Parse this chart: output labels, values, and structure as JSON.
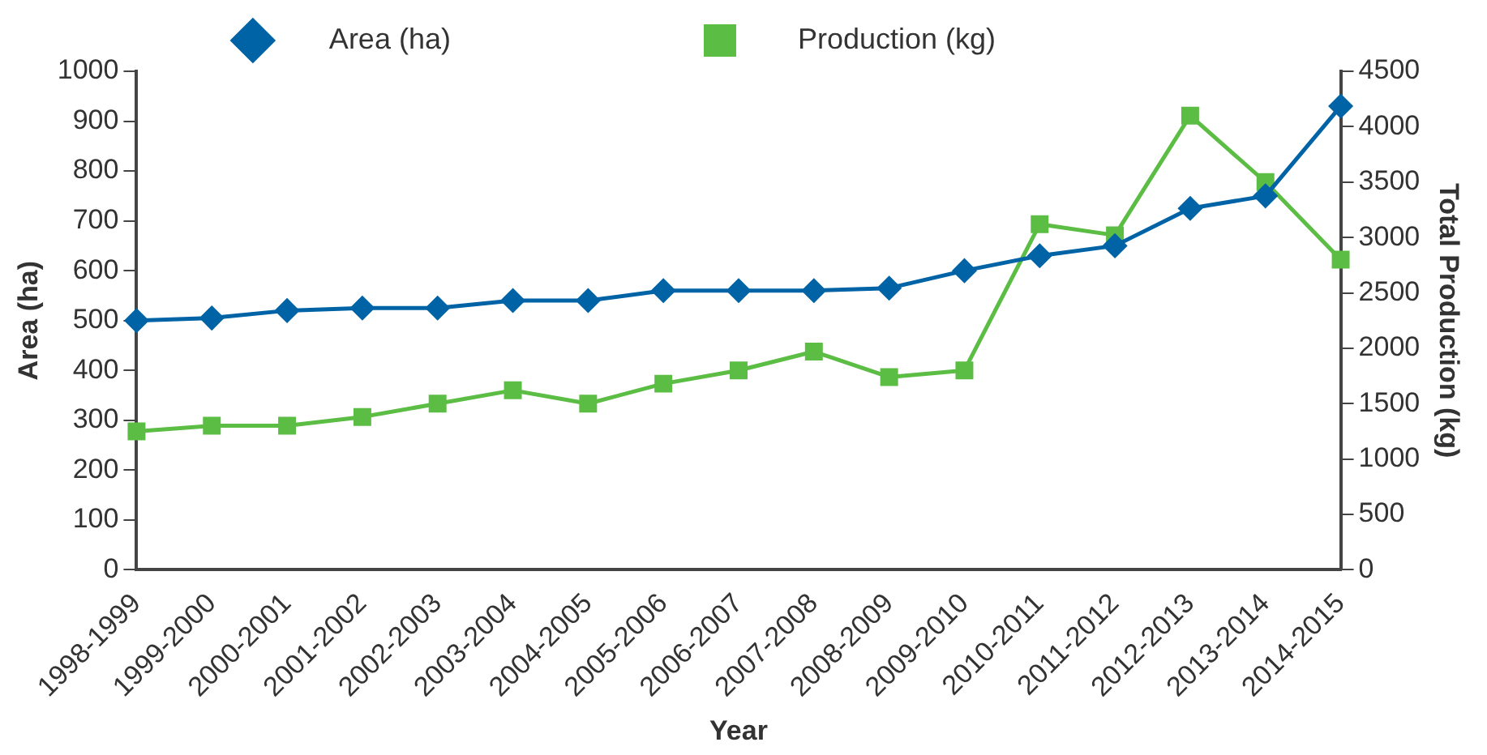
{
  "chart_data": {
    "type": "line",
    "xlabel": "Year",
    "ylabel": "Area (ha)",
    "y2label": "Total Production (kg)",
    "categories": [
      "1998-1999",
      "1999-2000",
      "2000-2001",
      "2001-2002",
      "2002-2003",
      "2003-2004",
      "2004-2005",
      "2005-2006",
      "2006-2007",
      "2007-2008",
      "2008-2009",
      "2009-2010",
      "2010-2011",
      "2011-2012",
      "2012-2013",
      "2013-2014",
      "2014-2015"
    ],
    "series": [
      {
        "name": "Area (ha)",
        "color": "#0063a6",
        "marker": "diamond",
        "values": [
          500,
          505,
          520,
          525,
          525,
          540,
          540,
          560,
          560,
          560,
          565,
          600,
          630,
          650,
          725,
          750,
          930
        ]
      },
      {
        "name": "Production (kg)",
        "color": "#5cbd45",
        "marker": "square",
        "axis": "y2",
        "values": [
          1250,
          1300,
          1300,
          1380,
          1500,
          1620,
          1500,
          1680,
          1800,
          1970,
          1740,
          1800,
          3120,
          3020,
          4100,
          3500,
          2800
        ]
      }
    ],
    "ylim": [
      0,
      1000
    ],
    "yticks": [
      0,
      100,
      200,
      300,
      400,
      500,
      600,
      700,
      800,
      900,
      1000
    ],
    "y2lim": [
      0,
      4500
    ],
    "y2ticks": [
      0,
      500,
      1000,
      1500,
      2000,
      2500,
      3000,
      3500,
      4000,
      4500
    ],
    "grid": false,
    "legend": "top",
    "line_style": "solid"
  }
}
